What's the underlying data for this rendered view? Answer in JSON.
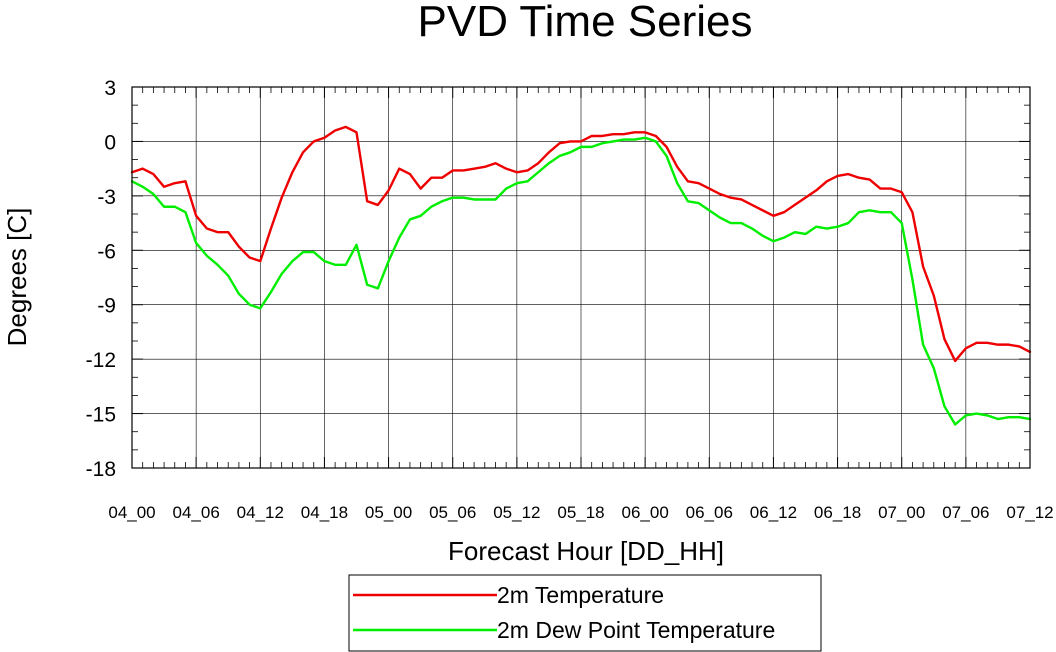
{
  "chart_data": {
    "type": "line",
    "title": "PVD Time Series",
    "xlabel": "Forecast Hour [DD_HH]",
    "ylabel": "Degrees [C]",
    "ylim": [
      -18,
      3
    ],
    "yticks": [
      "3",
      "0",
      "-3",
      "-6",
      "-9",
      "-12",
      "-15",
      "-18"
    ],
    "ytick_values": [
      3,
      0,
      -3,
      -6,
      -9,
      -12,
      -15,
      -18
    ],
    "xlim": [
      0,
      84
    ],
    "xtick_hours": [
      0,
      6,
      12,
      18,
      24,
      30,
      36,
      42,
      48,
      54,
      60,
      66,
      72,
      78,
      84
    ],
    "xtick_labels": [
      "04_00",
      "04_06",
      "04_12",
      "04_18",
      "05_00",
      "05_06",
      "05_12",
      "05_18",
      "06_00",
      "06_06",
      "06_12",
      "06_18",
      "07_00",
      "07_06",
      "07_12"
    ],
    "grid": true,
    "legend_position": "bottom-center",
    "x": [
      0,
      1,
      2,
      3,
      4,
      5,
      6,
      7,
      8,
      9,
      10,
      11,
      12,
      13,
      14,
      15,
      16,
      17,
      18,
      19,
      20,
      21,
      22,
      23,
      24,
      25,
      26,
      27,
      28,
      29,
      30,
      31,
      32,
      33,
      34,
      35,
      36,
      37,
      38,
      39,
      40,
      41,
      42,
      43,
      44,
      45,
      46,
      47,
      48,
      49,
      50,
      51,
      52,
      53,
      54,
      55,
      56,
      57,
      58,
      59,
      60,
      61,
      62,
      63,
      64,
      65,
      66,
      67,
      68,
      69,
      70,
      71,
      72,
      73,
      74,
      75,
      76,
      77,
      78,
      79,
      80,
      81,
      82,
      83,
      84
    ],
    "series": [
      {
        "name": "2m Temperature",
        "color": "#ee0000",
        "values": [
          -1.7,
          -1.5,
          -1.8,
          -2.5,
          -2.3,
          -2.2,
          -4.1,
          -4.8,
          -5.0,
          -5.0,
          -5.8,
          -6.4,
          -6.6,
          -4.8,
          -3.1,
          -1.7,
          -0.6,
          0.0,
          0.2,
          0.6,
          0.8,
          0.5,
          -3.3,
          -3.5,
          -2.7,
          -1.5,
          -1.8,
          -2.6,
          -2.0,
          -2.0,
          -1.6,
          -1.6,
          -1.5,
          -1.4,
          -1.2,
          -1.5,
          -1.7,
          -1.6,
          -1.2,
          -0.6,
          -0.1,
          0.0,
          0.0,
          0.3,
          0.3,
          0.4,
          0.4,
          0.5,
          0.5,
          0.3,
          -0.3,
          -1.4,
          -2.2,
          -2.3,
          -2.6,
          -2.9,
          -3.1,
          -3.2,
          -3.5,
          -3.8,
          -4.1,
          -3.9,
          -3.5,
          -3.1,
          -2.7,
          -2.2,
          -1.9,
          -1.8,
          -2.0,
          -2.1,
          -2.6,
          -2.6,
          -2.8,
          -3.9,
          -6.9,
          -8.5,
          -10.9,
          -12.1,
          -11.4,
          -11.1,
          -11.1,
          -11.2,
          -11.2,
          -11.3,
          -11.6
        ]
      },
      {
        "name": "2m Dew Point Temperature",
        "color": "#00ee00",
        "values": [
          -2.2,
          -2.5,
          -2.9,
          -3.6,
          -3.6,
          -3.9,
          -5.6,
          -6.3,
          -6.8,
          -7.4,
          -8.4,
          -9.0,
          -9.2,
          -8.3,
          -7.3,
          -6.6,
          -6.1,
          -6.1,
          -6.6,
          -6.8,
          -6.8,
          -5.7,
          -7.9,
          -8.1,
          -6.6,
          -5.3,
          -4.3,
          -4.1,
          -3.6,
          -3.3,
          -3.1,
          -3.1,
          -3.2,
          -3.2,
          -3.2,
          -2.6,
          -2.3,
          -2.2,
          -1.7,
          -1.2,
          -0.8,
          -0.6,
          -0.3,
          -0.3,
          -0.1,
          0.0,
          0.1,
          0.1,
          0.2,
          0.0,
          -0.8,
          -2.3,
          -3.3,
          -3.4,
          -3.8,
          -4.2,
          -4.5,
          -4.5,
          -4.8,
          -5.2,
          -5.5,
          -5.3,
          -5.0,
          -5.1,
          -4.7,
          -4.8,
          -4.7,
          -4.5,
          -3.9,
          -3.8,
          -3.9,
          -3.9,
          -4.5,
          -7.6,
          -11.2,
          -12.5,
          -14.6,
          -15.6,
          -15.1,
          -15.0,
          -15.1,
          -15.3,
          -15.2,
          -15.2,
          -15.3
        ]
      }
    ]
  }
}
